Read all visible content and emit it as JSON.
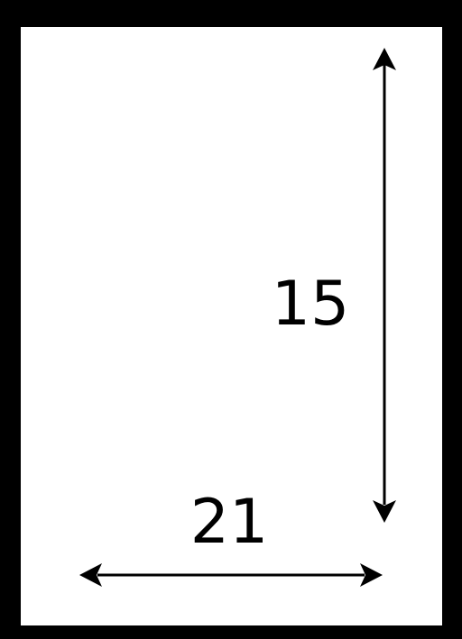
{
  "diagram": {
    "height_label": "15",
    "width_label": "21",
    "frame_color": "#000000",
    "background_color": "#ffffff",
    "arrow_color": "#000000"
  }
}
